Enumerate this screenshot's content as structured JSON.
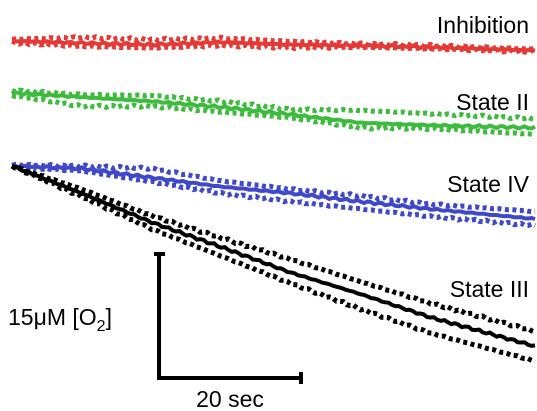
{
  "chart_data": {
    "type": "line",
    "xlabel": "",
    "ylabel": "",
    "grid": false,
    "legend": "inline-right",
    "x_range_sec": [
      0,
      75
    ],
    "series_style": "solid mean trace with dotted traces above and below",
    "scale_bar": {
      "vertical_label": "15μM [O",
      "vertical_subscript": "2",
      "vertical_label_end": "]",
      "vertical_value_uM": 15,
      "horizontal_label": "20 sec",
      "horizontal_value_sec": 20
    },
    "series": [
      {
        "name": "Inhibition",
        "color": "#e53935",
        "mean": [
          [
            0,
            0.25
          ],
          [
            10,
            0.0
          ],
          [
            20,
            -0.2
          ],
          [
            30,
            0.1
          ],
          [
            40,
            -0.2
          ],
          [
            50,
            -0.3
          ],
          [
            60,
            -0.5
          ],
          [
            75,
            -0.9
          ]
        ],
        "upper": [
          [
            0,
            0.45
          ],
          [
            10,
            0.7
          ],
          [
            20,
            0.4
          ],
          [
            30,
            0.6
          ],
          [
            40,
            0.2
          ],
          [
            50,
            -0.1
          ],
          [
            60,
            -0.3
          ],
          [
            75,
            -0.75
          ]
        ],
        "lower": [
          [
            0,
            0.05
          ],
          [
            10,
            -0.4
          ],
          [
            20,
            -0.6
          ],
          [
            30,
            -0.3
          ],
          [
            40,
            -0.55
          ],
          [
            50,
            -0.5
          ],
          [
            60,
            -0.7
          ],
          [
            75,
            -1.05
          ]
        ]
      },
      {
        "name": "State II",
        "color": "#3dbb3d",
        "mean": [
          [
            0,
            0.0
          ],
          [
            10,
            -0.5
          ],
          [
            20,
            -1.0
          ],
          [
            30,
            -1.7
          ],
          [
            40,
            -2.6
          ],
          [
            50,
            -3.6
          ],
          [
            60,
            -3.9
          ],
          [
            75,
            -4.2
          ]
        ],
        "upper": [
          [
            0,
            0.3
          ],
          [
            10,
            -0.2
          ],
          [
            20,
            -0.3
          ],
          [
            30,
            -1.0
          ],
          [
            40,
            -2.0
          ],
          [
            50,
            -2.1
          ],
          [
            60,
            -2.5
          ],
          [
            75,
            -3.1
          ]
        ],
        "lower": [
          [
            0,
            -0.3
          ],
          [
            10,
            -1.6
          ],
          [
            20,
            -1.6
          ],
          [
            30,
            -2.3
          ],
          [
            40,
            -3.0
          ],
          [
            50,
            -4.2
          ],
          [
            60,
            -4.3
          ],
          [
            75,
            -5.0
          ]
        ]
      },
      {
        "name": "State IV",
        "color": "#3f48c8",
        "mean": [
          [
            0,
            0.0
          ],
          [
            10,
            -0.3
          ],
          [
            20,
            -1.4
          ],
          [
            30,
            -2.5
          ],
          [
            40,
            -3.3
          ],
          [
            50,
            -4.3
          ],
          [
            60,
            -5.2
          ],
          [
            75,
            -6.4
          ]
        ],
        "upper": [
          [
            0,
            0.15
          ],
          [
            10,
            0.0
          ],
          [
            20,
            -0.3
          ],
          [
            30,
            -1.8
          ],
          [
            40,
            -2.8
          ],
          [
            50,
            -3.6
          ],
          [
            60,
            -4.6
          ],
          [
            75,
            -5.5
          ]
        ],
        "lower": [
          [
            0,
            -0.15
          ],
          [
            10,
            -0.6
          ],
          [
            20,
            -1.9
          ],
          [
            30,
            -3.3
          ],
          [
            40,
            -4.3
          ],
          [
            50,
            -5.2
          ],
          [
            60,
            -6.1
          ],
          [
            75,
            -7.2
          ]
        ]
      },
      {
        "name": "State III",
        "color": "#000000",
        "mean": [
          [
            0,
            0.0
          ],
          [
            10,
            -3.3
          ],
          [
            20,
            -6.8
          ],
          [
            30,
            -9.8
          ],
          [
            40,
            -12.9
          ],
          [
            50,
            -15.5
          ],
          [
            60,
            -18.3
          ],
          [
            75,
            -21.8
          ]
        ],
        "upper": [
          [
            0,
            0.0
          ],
          [
            10,
            -2.8
          ],
          [
            20,
            -6.0
          ],
          [
            30,
            -8.7
          ],
          [
            40,
            -11.3
          ],
          [
            50,
            -14.0
          ],
          [
            60,
            -16.6
          ],
          [
            75,
            -20.0
          ]
        ],
        "lower": [
          [
            0,
            0.0
          ],
          [
            10,
            -3.7
          ],
          [
            20,
            -7.6
          ],
          [
            30,
            -10.9
          ],
          [
            40,
            -14.2
          ],
          [
            50,
            -17.3
          ],
          [
            60,
            -20.2
          ],
          [
            75,
            -23.6
          ]
        ]
      }
    ]
  }
}
